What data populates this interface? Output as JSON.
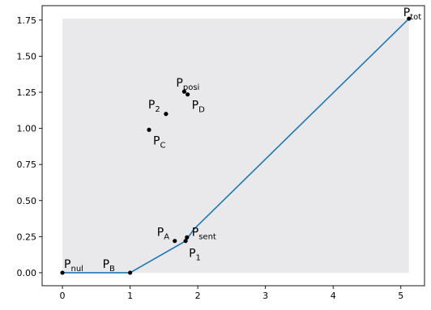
{
  "chart_data": {
    "type": "scatter",
    "title": "",
    "xlabel": "",
    "ylabel": "",
    "xlim": [
      -0.3,
      5.35
    ],
    "ylim": [
      -0.09,
      1.85
    ],
    "xticks": [
      0,
      1,
      2,
      3,
      4,
      5
    ],
    "yticks": [
      0.0,
      0.25,
      0.5,
      0.75,
      1.0,
      1.25,
      1.5,
      1.75
    ],
    "xtick_labels": [
      "0",
      "1",
      "2",
      "3",
      "4",
      "5"
    ],
    "ytick_labels": [
      "0.00",
      "0.25",
      "0.50",
      "0.75",
      "1.00",
      "1.25",
      "1.50",
      "1.75"
    ],
    "grid": false,
    "colors": {
      "frontier": "#1f77b4",
      "shaded_region": "#e9e9ec",
      "points": "#000000"
    },
    "shaded_region": {
      "x": [
        0,
        5.12
      ],
      "y": [
        0,
        1.76
      ]
    },
    "frontier": {
      "x": [
        0,
        1,
        1.82,
        1.94,
        5.12
      ],
      "y": [
        0,
        0,
        0.22,
        0.3,
        1.76
      ]
    },
    "points": [
      {
        "id": "nul",
        "main": "P",
        "sub": "nul",
        "x": 0,
        "y": 0,
        "anchor": "start"
      },
      {
        "id": "B",
        "main": "P",
        "sub": "B",
        "x": 1,
        "y": 0,
        "anchor": "start"
      },
      {
        "id": "A",
        "main": "P",
        "sub": "A",
        "x": 1.66,
        "y": 0.22,
        "anchor": "end"
      },
      {
        "id": "1",
        "main": "P",
        "sub": "1",
        "x": 1.82,
        "y": 0.22,
        "anchor": "start"
      },
      {
        "id": "sent",
        "main": "P",
        "sub": "sent",
        "x": 1.84,
        "y": 0.245,
        "anchor": "start"
      },
      {
        "id": "tot",
        "main": "P",
        "sub": "tot",
        "x": 5.12,
        "y": 1.76,
        "anchor": "start"
      },
      {
        "id": "posi",
        "main": "P",
        "sub": "posi",
        "x": 1.8,
        "y": 1.255,
        "anchor": "end"
      },
      {
        "id": "D",
        "main": "P",
        "sub": "D",
        "x": 1.85,
        "y": 1.235,
        "anchor": "start"
      },
      {
        "id": "2",
        "main": "P",
        "sub": "2",
        "x": 1.53,
        "y": 1.1,
        "anchor": "end"
      },
      {
        "id": "C",
        "main": "P",
        "sub": "C",
        "x": 1.28,
        "y": 0.99,
        "anchor": "start"
      }
    ]
  }
}
